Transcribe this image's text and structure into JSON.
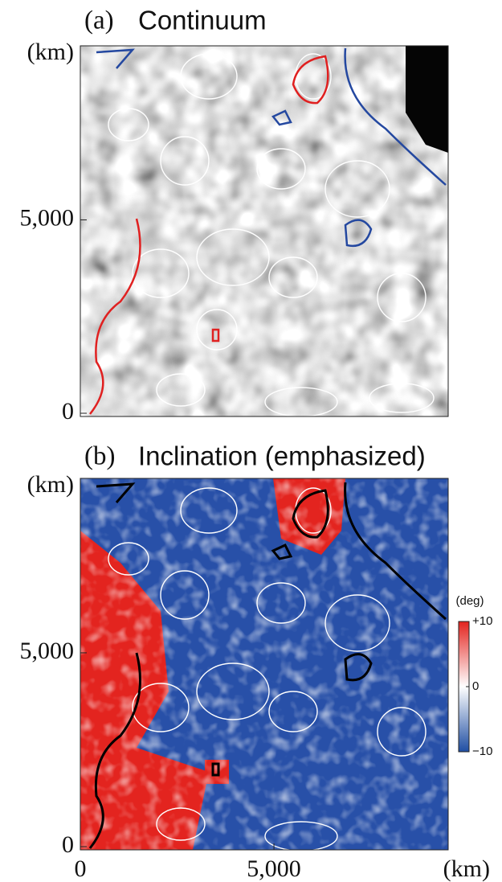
{
  "chart_data": [
    {
      "type": "heatmap",
      "panel": "(a)",
      "title": "Continuum",
      "ylabel": "(km)",
      "xlim": [
        0,
        9500
      ],
      "ylim": [
        0,
        9500
      ],
      "yticks": [
        0,
        {
          "value": 5000,
          "label": "5,000"
        }
      ]
    },
    {
      "type": "heatmap",
      "panel": "(b)",
      "title": "Inclination (emphasized)",
      "ylabel": "(km)",
      "xlabel": "(km)",
      "xlim": [
        0,
        9500
      ],
      "ylim": [
        0,
        9500
      ],
      "xticks": [
        0,
        {
          "value": 5000,
          "label": "5,000"
        }
      ],
      "yticks": [
        0,
        {
          "value": 5000,
          "label": "5,000"
        }
      ],
      "colorbar": {
        "label": "(deg)",
        "lim": [
          -10,
          10
        ],
        "ticks": [
          {
            "value": 10,
            "label": "+10"
          },
          0,
          {
            "value": -10,
            "label": "−10"
          }
        ],
        "colors": [
          "#1f4ea3",
          "#ffffff",
          "#e3241f"
        ]
      }
    }
  ]
}
